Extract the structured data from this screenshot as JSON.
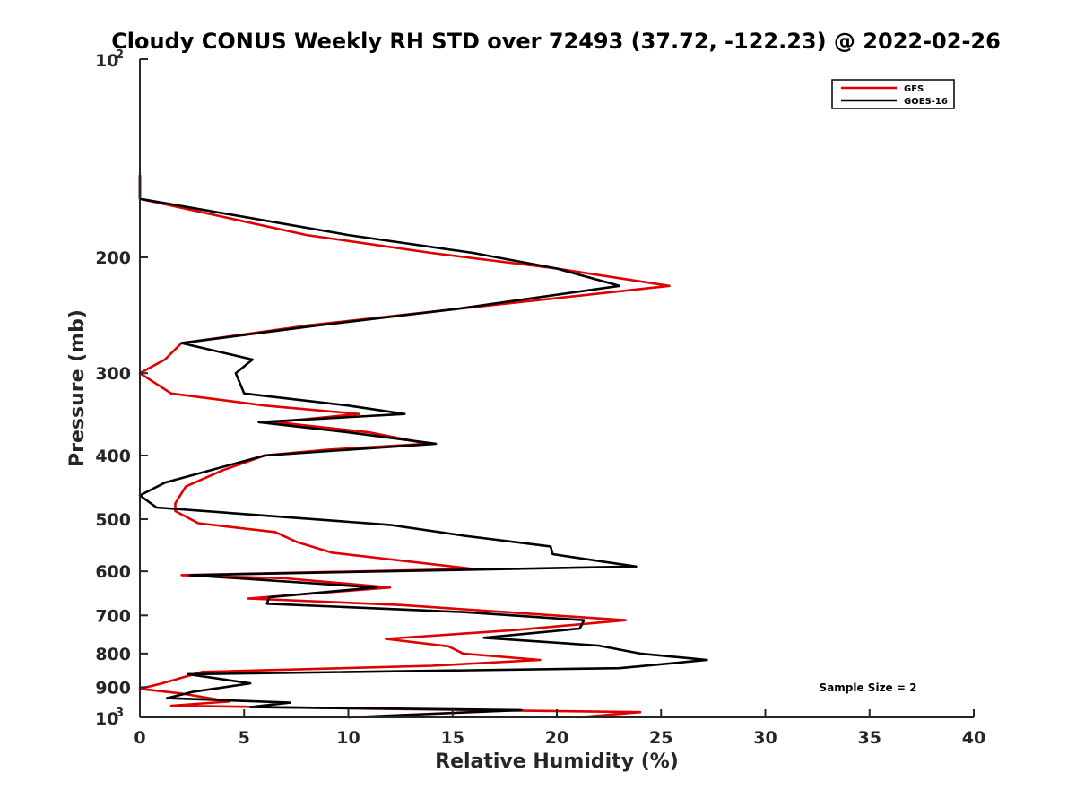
{
  "chart_data": {
    "type": "line",
    "title": "Cloudy CONUS Weekly RH STD over 72493 (37.72, -122.23) @ 2022-02-26",
    "xlabel": "Relative Humidity (%)",
    "ylabel": "Pressure (mb)",
    "xlim": [
      0,
      40
    ],
    "ylim": [
      100,
      1000
    ],
    "y_scale": "log",
    "y_reversed": true,
    "grid": false,
    "legend_position": "top-right",
    "x_ticks": [
      "0",
      "5",
      "10",
      "15",
      "20",
      "25",
      "30",
      "35",
      "40"
    ],
    "y_ticks": [
      {
        "value": 100,
        "base": "10",
        "exp": "2"
      },
      {
        "value": 200,
        "label": "200"
      },
      {
        "value": 300,
        "label": "300"
      },
      {
        "value": 400,
        "label": "400"
      },
      {
        "value": 500,
        "label": "500"
      },
      {
        "value": 600,
        "label": "600"
      },
      {
        "value": 700,
        "label": "700"
      },
      {
        "value": 800,
        "label": "800"
      },
      {
        "value": 900,
        "label": "900"
      },
      {
        "value": 1000,
        "base": "10",
        "exp": "3"
      }
    ],
    "annotation": "Sample Size = 2",
    "series": [
      {
        "name": "GFS",
        "color": "#e00000",
        "points": [
          [
            0,
            150
          ],
          [
            0,
            163
          ],
          [
            8,
            185
          ],
          [
            14,
            197
          ],
          [
            20,
            208
          ],
          [
            25.4,
            221
          ],
          [
            15,
            240
          ],
          [
            8,
            254
          ],
          [
            2,
            270
          ],
          [
            1.2,
            286
          ],
          [
            0,
            300
          ],
          [
            1.5,
            322
          ],
          [
            6,
            336
          ],
          [
            10.5,
            346
          ],
          [
            6.5,
            356
          ],
          [
            11,
            369
          ],
          [
            13.8,
            384
          ],
          [
            9,
            392
          ],
          [
            6,
            400
          ],
          [
            4,
            421
          ],
          [
            2.2,
            446
          ],
          [
            1.7,
            473
          ],
          [
            1.7,
            486
          ],
          [
            2.8,
            507
          ],
          [
            6.5,
            523
          ],
          [
            7.5,
            541
          ],
          [
            9.2,
            562
          ],
          [
            16,
            595
          ],
          [
            2,
            608
          ],
          [
            7,
            615
          ],
          [
            12,
            635
          ],
          [
            5.2,
            660
          ],
          [
            12.5,
            675
          ],
          [
            17.5,
            692
          ],
          [
            23.3,
            712
          ],
          [
            18,
            737
          ],
          [
            11.8,
            760
          ],
          [
            14.8,
            780
          ],
          [
            15.5,
            800
          ],
          [
            19.2,
            818
          ],
          [
            14,
            835
          ],
          [
            3,
            853
          ],
          [
            1,
            889
          ],
          [
            0,
            905
          ],
          [
            2,
            920
          ],
          [
            4.3,
            946
          ],
          [
            1.5,
            960
          ],
          [
            11,
            970
          ],
          [
            24,
            982
          ],
          [
            21,
            1000
          ]
        ]
      },
      {
        "name": "GOES-16",
        "color": "#000000",
        "points": [
          [
            0,
            150
          ],
          [
            0,
            163
          ],
          [
            10,
            185
          ],
          [
            16,
            197
          ],
          [
            20,
            208
          ],
          [
            23,
            221
          ],
          [
            15,
            240
          ],
          [
            8.5,
            254
          ],
          [
            2,
            270
          ],
          [
            5.4,
            286
          ],
          [
            4.6,
            300
          ],
          [
            5,
            322
          ],
          [
            10,
            336
          ],
          [
            12.7,
            346
          ],
          [
            5.7,
            356
          ],
          [
            10,
            369
          ],
          [
            14.2,
            384
          ],
          [
            6,
            400
          ],
          [
            1.2,
            440
          ],
          [
            0,
            460
          ],
          [
            0.8,
            480
          ],
          [
            12,
            510
          ],
          [
            15.6,
            530
          ],
          [
            19.7,
            550
          ],
          [
            19.8,
            565
          ],
          [
            23.8,
            590
          ],
          [
            2.4,
            608
          ],
          [
            11.3,
            635
          ],
          [
            6.2,
            657
          ],
          [
            6.1,
            672
          ],
          [
            15.5,
            692
          ],
          [
            21.3,
            712
          ],
          [
            21.1,
            733
          ],
          [
            16.5,
            757
          ],
          [
            22,
            778
          ],
          [
            24,
            800
          ],
          [
            27.2,
            818
          ],
          [
            23,
            842
          ],
          [
            2.3,
            860
          ],
          [
            5.3,
            888
          ],
          [
            2.5,
            915
          ],
          [
            1.3,
            935
          ],
          [
            7.2,
            950
          ],
          [
            5.3,
            965
          ],
          [
            18.3,
            975
          ],
          [
            10,
            1000
          ]
        ]
      }
    ]
  }
}
